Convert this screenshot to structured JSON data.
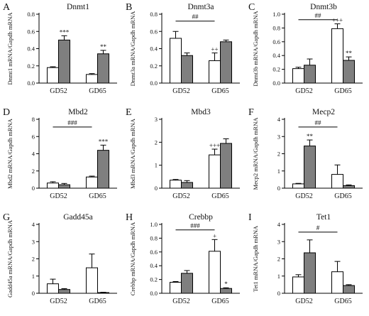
{
  "chart_data": [
    {
      "type": "bar",
      "panel_letter": "A",
      "title": "Dnmt1",
      "ylabel": "Dnmt1 mRNA/Gapdh mRNA",
      "categories": [
        "GD52",
        "GD65"
      ],
      "ylim": [
        0,
        0.8
      ],
      "yticks": [
        "0.0",
        "0.2",
        "0.4",
        "0.6",
        "0.8"
      ],
      "series": [
        {
          "color": "#ffffff",
          "values": [
            0.18,
            0.1
          ],
          "errors": [
            0.01,
            0.01
          ],
          "marks": [
            "",
            ""
          ]
        },
        {
          "color": "#7f7f7f",
          "values": [
            0.5,
            0.34
          ],
          "errors": [
            0.05,
            0.04
          ],
          "marks": [
            "***",
            "**"
          ]
        }
      ],
      "bracket": null
    },
    {
      "type": "bar",
      "panel_letter": "B",
      "title": "Dnmt3a",
      "ylabel": "Dnmt3a mRNA/Gapdh mRNA",
      "categories": [
        "GD52",
        "GD65"
      ],
      "ylim": [
        0,
        0.8
      ],
      "yticks": [
        "0.0",
        "0.2",
        "0.4",
        "0.6",
        "0.8"
      ],
      "series": [
        {
          "color": "#ffffff",
          "values": [
            0.52,
            0.26
          ],
          "errors": [
            0.08,
            0.09
          ],
          "marks": [
            "",
            "++"
          ]
        },
        {
          "color": "#7f7f7f",
          "values": [
            0.32,
            0.48
          ],
          "errors": [
            0.03,
            0.02
          ],
          "marks": [
            "",
            ""
          ]
        }
      ],
      "bracket": {
        "label": "##",
        "y": 0.72
      }
    },
    {
      "type": "bar",
      "panel_letter": "C",
      "title": "Dnmt3b",
      "ylabel": "Dnmt3b mRNA/Gapdh mRNA",
      "categories": [
        "GD52",
        "GD65"
      ],
      "ylim": [
        0,
        1.0
      ],
      "yticks": [
        "0.0",
        "0.2",
        "0.4",
        "0.6",
        "0.8",
        "1.0"
      ],
      "series": [
        {
          "color": "#ffffff",
          "values": [
            0.21,
            0.79
          ],
          "errors": [
            0.02,
            0.07
          ],
          "marks": [
            "",
            "+++"
          ]
        },
        {
          "color": "#7f7f7f",
          "values": [
            0.26,
            0.33
          ],
          "errors": [
            0.09,
            0.05
          ],
          "marks": [
            "",
            "**"
          ]
        }
      ],
      "bracket": {
        "label": "##",
        "y": 0.92
      }
    },
    {
      "type": "bar",
      "panel_letter": "D",
      "title": "Mbd2",
      "ylabel": "Mbd2 mRNA/Gapdh mRNA",
      "categories": [
        "GD52",
        "GD65"
      ],
      "ylim": [
        0,
        8
      ],
      "yticks": [
        "0",
        "2",
        "4",
        "6",
        "8"
      ],
      "series": [
        {
          "color": "#ffffff",
          "values": [
            0.6,
            1.3
          ],
          "errors": [
            0.15,
            0.1
          ],
          "marks": [
            "",
            ""
          ]
        },
        {
          "color": "#7f7f7f",
          "values": [
            0.4,
            4.4
          ],
          "errors": [
            0.15,
            0.6
          ],
          "marks": [
            "",
            "***"
          ]
        }
      ],
      "bracket": {
        "label": "###",
        "y": 7.1
      }
    },
    {
      "type": "bar",
      "panel_letter": "E",
      "title": "Mbd3",
      "ylabel": "Mbd3 mRNA/Gapdh mRNA",
      "categories": [
        "GD52",
        "GD65"
      ],
      "ylim": [
        0,
        3
      ],
      "yticks": [
        "0",
        "1",
        "2",
        "3"
      ],
      "series": [
        {
          "color": "#ffffff",
          "values": [
            0.35,
            1.45
          ],
          "errors": [
            0.03,
            0.25
          ],
          "marks": [
            "",
            "+++"
          ]
        },
        {
          "color": "#7f7f7f",
          "values": [
            0.25,
            1.95
          ],
          "errors": [
            0.08,
            0.2
          ],
          "marks": [
            "",
            ""
          ]
        }
      ],
      "bracket": null
    },
    {
      "type": "bar",
      "panel_letter": "F",
      "title": "Mecp2",
      "ylabel": "Mecp2 mRNA/Gapdh mRNA",
      "categories": [
        "GD52",
        "GD65"
      ],
      "ylim": [
        0,
        4
      ],
      "yticks": [
        "0",
        "1",
        "2",
        "3",
        "4"
      ],
      "series": [
        {
          "color": "#ffffff",
          "values": [
            0.25,
            0.8
          ],
          "errors": [
            0.03,
            0.55
          ],
          "marks": [
            "",
            ""
          ]
        },
        {
          "color": "#7f7f7f",
          "values": [
            2.45,
            0.15
          ],
          "errors": [
            0.35,
            0.04
          ],
          "marks": [
            "**",
            ""
          ]
        }
      ],
      "bracket": {
        "label": "##",
        "y": 3.55
      }
    },
    {
      "type": "bar",
      "panel_letter": "G",
      "title": "Gadd45a",
      "ylabel": "Gadd45a  mRNA/Gapdh mRNA",
      "categories": [
        "GD52",
        "GD65"
      ],
      "ylim": [
        0,
        4
      ],
      "yticks": [
        "0",
        "1",
        "2",
        "3",
        "4"
      ],
      "series": [
        {
          "color": "#ffffff",
          "values": [
            0.55,
            1.48
          ],
          "errors": [
            0.27,
            0.8
          ],
          "marks": [
            "",
            ""
          ]
        },
        {
          "color": "#7f7f7f",
          "values": [
            0.22,
            0.04
          ],
          "errors": [
            0.05,
            0.02
          ],
          "marks": [
            "",
            ""
          ]
        }
      ],
      "bracket": null
    },
    {
      "type": "bar",
      "panel_letter": "H",
      "title": "Crebbp",
      "ylabel": "Crebbp mRNA/Gapdh mRNA",
      "categories": [
        "GD52",
        "GD65"
      ],
      "ylim": [
        0,
        1.0
      ],
      "yticks": [
        "0.0",
        "0.2",
        "0.4",
        "0.6",
        "0.8",
        "1.0"
      ],
      "series": [
        {
          "color": "#ffffff",
          "values": [
            0.16,
            0.61
          ],
          "errors": [
            0.01,
            0.17
          ],
          "marks": [
            "",
            "+"
          ]
        },
        {
          "color": "#7f7f7f",
          "values": [
            0.29,
            0.07
          ],
          "errors": [
            0.04,
            0.01
          ],
          "marks": [
            "",
            "*"
          ]
        }
      ],
      "bracket": {
        "label": "###",
        "y": 0.92
      }
    },
    {
      "type": "bar",
      "panel_letter": "I",
      "title": "Tet1",
      "ylabel": "Tet1 mRNA/Gapdh mRNA",
      "categories": [
        "GD52",
        "GD65"
      ],
      "ylim": [
        0,
        4
      ],
      "yticks": [
        "0",
        "1",
        "2",
        "3",
        "4"
      ],
      "series": [
        {
          "color": "#ffffff",
          "values": [
            0.95,
            1.25
          ],
          "errors": [
            0.13,
            0.6
          ],
          "marks": [
            "",
            ""
          ]
        },
        {
          "color": "#7f7f7f",
          "values": [
            2.35,
            0.45
          ],
          "errors": [
            0.75,
            0.05
          ],
          "marks": [
            "",
            ""
          ]
        }
      ],
      "bracket": {
        "label": "#",
        "y": 3.55
      }
    }
  ]
}
